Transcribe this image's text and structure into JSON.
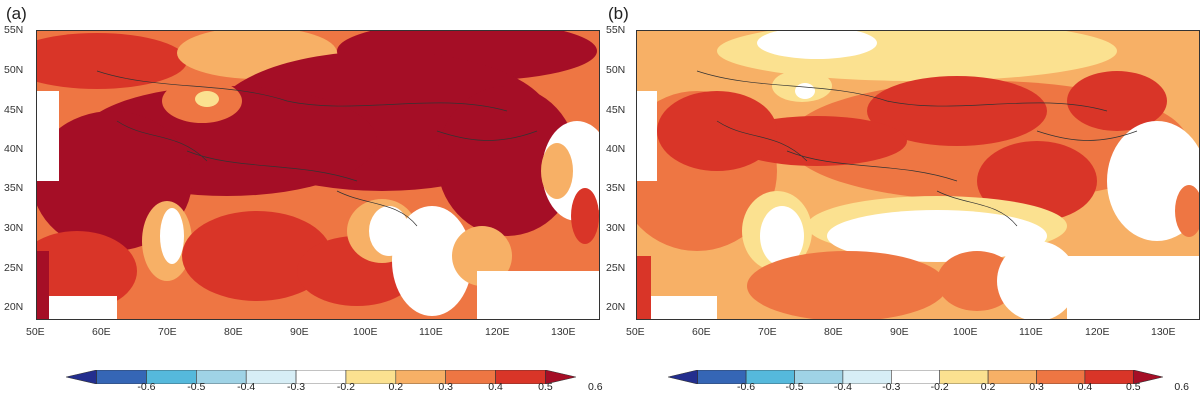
{
  "panels": [
    {
      "label": "(a)"
    },
    {
      "label": "(b)"
    }
  ],
  "lat_ticks": [
    "55N",
    "50N",
    "45N",
    "40N",
    "35N",
    "30N",
    "25N",
    "20N"
  ],
  "lon_ticks": [
    "50E",
    "60E",
    "70E",
    "80E",
    "90E",
    "100E",
    "110E",
    "120E",
    "130E"
  ],
  "colorbar": {
    "labels": [
      "-0.6",
      "-0.5",
      "-0.4",
      "-0.3",
      "-0.2",
      "0.2",
      "0.3",
      "0.4",
      "0.5",
      "0.6"
    ],
    "colors": [
      "#232e8e",
      "#3566b6",
      "#55b9dc",
      "#9fd3e6",
      "#d7eef6",
      "#ffffff",
      "#fbe190",
      "#f7b066",
      "#ee7643",
      "#d93528",
      "#a50e26"
    ]
  }
}
